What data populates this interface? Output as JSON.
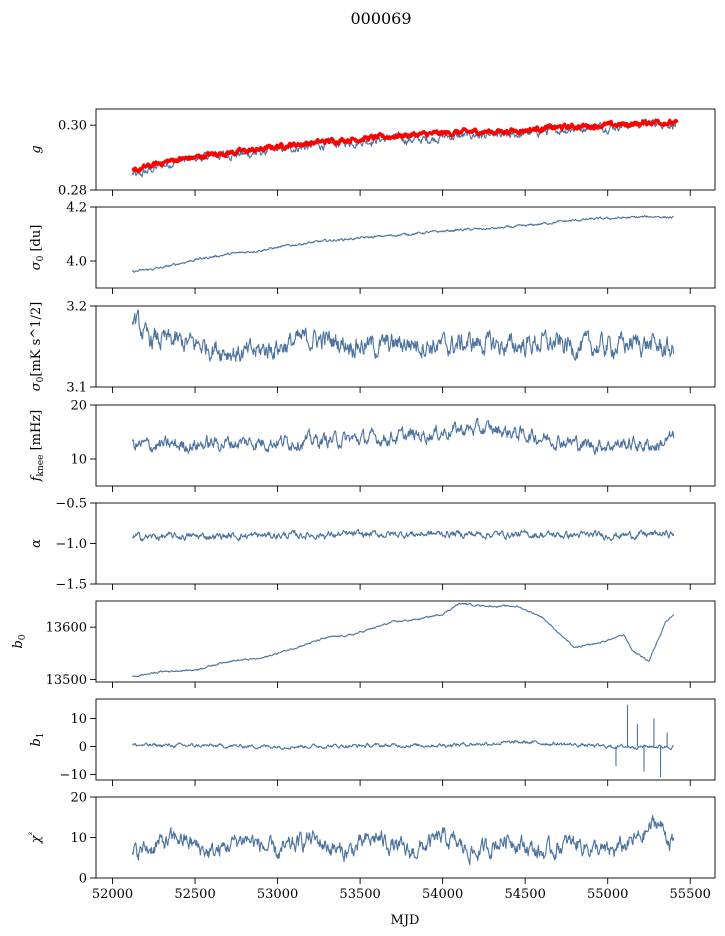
{
  "figure": {
    "title": "000069",
    "shared_xlabel": "MJD",
    "x_ticks": [
      52000,
      52500,
      53000,
      53500,
      54000,
      54500,
      55000,
      55500
    ]
  },
  "chart_data": [
    {
      "id": "g",
      "type": "line",
      "ylabel_main": "g",
      "ylabel_sub": "",
      "ylabel_tail": "",
      "xlim": [
        51900,
        55650
      ],
      "ylim": [
        0.28,
        0.305
      ],
      "yticks": [
        0.28,
        0.3
      ],
      "ytick_labels": [
        "0.28",
        "0.30"
      ],
      "x_range": [
        52120,
        55420
      ],
      "series": [
        {
          "color": "#4c72a0",
          "points": [
            [
              52120,
              0.285
            ],
            [
              52150,
              0.284
            ],
            [
              52200,
              0.2855
            ],
            [
              52300,
              0.2875
            ],
            [
              52400,
              0.289
            ],
            [
              52500,
              0.2895
            ],
            [
              52600,
              0.2905
            ],
            [
              52700,
              0.291
            ],
            [
              52800,
              0.291
            ],
            [
              52900,
              0.2915
            ],
            [
              53000,
              0.2925
            ],
            [
              53100,
              0.293
            ],
            [
              53200,
              0.2935
            ],
            [
              53300,
              0.294
            ],
            [
              53400,
              0.2945
            ],
            [
              53500,
              0.295
            ],
            [
              53600,
              0.2955
            ],
            [
              53700,
              0.296
            ],
            [
              53800,
              0.2955
            ],
            [
              53900,
              0.2955
            ],
            [
              54000,
              0.2965
            ],
            [
              54100,
              0.2965
            ],
            [
              54200,
              0.297
            ],
            [
              54300,
              0.2965
            ],
            [
              54400,
              0.2965
            ],
            [
              54500,
              0.2975
            ],
            [
              54600,
              0.298
            ],
            [
              54700,
              0.2985
            ],
            [
              54800,
              0.299
            ],
            [
              54900,
              0.2995
            ],
            [
              55000,
              0.2995
            ],
            [
              55100,
              0.3
            ],
            [
              55200,
              0.3005
            ],
            [
              55300,
              0.301
            ],
            [
              55420,
              0.3
            ]
          ],
          "noise": 0.0012
        },
        {
          "color": "#ff0000",
          "points": [
            [
              52120,
              0.2855
            ],
            [
              52200,
              0.287
            ],
            [
              52300,
              0.2885
            ],
            [
              52400,
              0.2895
            ],
            [
              52500,
              0.29
            ],
            [
              52600,
              0.291
            ],
            [
              52700,
              0.2915
            ],
            [
              52800,
              0.292
            ],
            [
              52900,
              0.2925
            ],
            [
              53000,
              0.2935
            ],
            [
              53100,
              0.294
            ],
            [
              53200,
              0.2945
            ],
            [
              53300,
              0.295
            ],
            [
              53400,
              0.2955
            ],
            [
              53500,
              0.2958
            ],
            [
              53600,
              0.2962
            ],
            [
              53700,
              0.2966
            ],
            [
              53800,
              0.297
            ],
            [
              53900,
              0.2972
            ],
            [
              54000,
              0.2975
            ],
            [
              54100,
              0.2978
            ],
            [
              54200,
              0.298
            ],
            [
              54300,
              0.298
            ],
            [
              54400,
              0.2982
            ],
            [
              54500,
              0.2985
            ],
            [
              54600,
              0.299
            ],
            [
              54700,
              0.2993
            ],
            [
              54800,
              0.2996
            ],
            [
              54900,
              0.2998
            ],
            [
              55000,
              0.3
            ],
            [
              55100,
              0.3002
            ],
            [
              55200,
              0.3005
            ],
            [
              55300,
              0.3012
            ],
            [
              55420,
              0.3005
            ]
          ],
          "noise": 0.0007
        }
      ]
    },
    {
      "id": "sigma0-du",
      "type": "line",
      "ylabel_main": "σ",
      "ylabel_sub": "0",
      "ylabel_tail": " [du]",
      "xlim": [
        51900,
        55650
      ],
      "ylim": [
        3.9,
        4.2
      ],
      "yticks": [
        4.0,
        4.2
      ],
      "ytick_labels": [
        "4.0",
        "4.2"
      ],
      "x_range": [
        52120,
        55400
      ],
      "series": [
        {
          "color": "#4c72a0",
          "points": [
            [
              52120,
              3.96
            ],
            [
              52300,
              3.975
            ],
            [
              52500,
              4.005
            ],
            [
              52700,
              4.025
            ],
            [
              52900,
              4.04
            ],
            [
              53100,
              4.06
            ],
            [
              53300,
              4.075
            ],
            [
              53500,
              4.085
            ],
            [
              53700,
              4.095
            ],
            [
              53900,
              4.105
            ],
            [
              54100,
              4.115
            ],
            [
              54300,
              4.12
            ],
            [
              54500,
              4.13
            ],
            [
              54700,
              4.145
            ],
            [
              54900,
              4.155
            ],
            [
              55100,
              4.16
            ],
            [
              55300,
              4.165
            ],
            [
              55400,
              4.16
            ]
          ],
          "noise": 0.004
        }
      ]
    },
    {
      "id": "sigma0-mk",
      "type": "line",
      "ylabel_main": "σ",
      "ylabel_sub": "0",
      "ylabel_tail": "[mK s^1/2]",
      "xlim": [
        51900,
        55650
      ],
      "ylim": [
        3.1,
        3.2
      ],
      "yticks": [
        3.1,
        3.2
      ],
      "ytick_labels": [
        "3.1",
        "3.2"
      ],
      "x_range": [
        52120,
        55400
      ],
      "series": [
        {
          "color": "#4c72a0",
          "points": [
            [
              52120,
              3.19
            ],
            [
              52200,
              3.16
            ],
            [
              52400,
              3.155
            ],
            [
              52600,
              3.15
            ],
            [
              52800,
              3.14
            ],
            [
              53000,
              3.15
            ],
            [
              53200,
              3.16
            ],
            [
              53400,
              3.155
            ],
            [
              53600,
              3.15
            ],
            [
              53800,
              3.155
            ],
            [
              54000,
              3.15
            ],
            [
              54200,
              3.155
            ],
            [
              54400,
              3.15
            ],
            [
              54600,
              3.155
            ],
            [
              54800,
              3.15
            ],
            [
              55000,
              3.15
            ],
            [
              55200,
              3.155
            ],
            [
              55400,
              3.145
            ]
          ],
          "noise": 0.012
        }
      ]
    },
    {
      "id": "fknee",
      "type": "line",
      "ylabel_main": "f",
      "ylabel_sub": "knee",
      "ylabel_tail": " [mHz]",
      "xlim": [
        51900,
        55650
      ],
      "ylim": [
        5,
        20
      ],
      "yticks": [
        10,
        20
      ],
      "ytick_labels": [
        "10",
        "20"
      ],
      "x_range": [
        52120,
        55400
      ],
      "series": [
        {
          "color": "#4c72a0",
          "points": [
            [
              52120,
              12.5
            ],
            [
              52400,
              12.5
            ],
            [
              52700,
              13
            ],
            [
              53000,
              13.2
            ],
            [
              53300,
              13.5
            ],
            [
              53600,
              13.8
            ],
            [
              53900,
              14.5
            ],
            [
              54100,
              15.5
            ],
            [
              54300,
              15.5
            ],
            [
              54500,
              14.5
            ],
            [
              54700,
              13.5
            ],
            [
              54900,
              12.5
            ],
            [
              55100,
              12.8
            ],
            [
              55300,
              12.5
            ],
            [
              55400,
              14
            ]
          ],
          "noise": 1.2
        }
      ]
    },
    {
      "id": "alpha",
      "type": "line",
      "ylabel_main": "α",
      "ylabel_sub": "",
      "ylabel_tail": "",
      "xlim": [
        51900,
        55650
      ],
      "ylim": [
        -1.5,
        -0.5
      ],
      "yticks": [
        -1.5,
        -1.0,
        -0.5
      ],
      "ytick_labels": [
        "−1.5",
        "−1.0",
        "−0.5"
      ],
      "x_range": [
        52120,
        55400
      ],
      "series": [
        {
          "color": "#4c72a0",
          "points": [
            [
              52120,
              -0.92
            ],
            [
              53000,
              -0.9
            ],
            [
              54000,
              -0.88
            ],
            [
              55000,
              -0.9
            ],
            [
              55400,
              -0.88
            ]
          ],
          "noise": 0.04
        }
      ]
    },
    {
      "id": "b0",
      "type": "line",
      "ylabel_main": "b",
      "ylabel_sub": "0",
      "ylabel_tail": "",
      "xlim": [
        51900,
        55650
      ],
      "ylim": [
        13495,
        13650
      ],
      "yticks": [
        13500,
        13600
      ],
      "ytick_labels": [
        "13500",
        "13600"
      ],
      "x_range": [
        52120,
        55400
      ],
      "series": [
        {
          "color": "#4c72a0",
          "points": [
            [
              52120,
              13505
            ],
            [
              52300,
              13515
            ],
            [
              52500,
              13518
            ],
            [
              52700,
              13535
            ],
            [
              52900,
              13540
            ],
            [
              53100,
              13560
            ],
            [
              53300,
              13580
            ],
            [
              53450,
              13585
            ],
            [
              53550,
              13595
            ],
            [
              53700,
              13610
            ],
            [
              53850,
              13615
            ],
            [
              54000,
              13625
            ],
            [
              54100,
              13645
            ],
            [
              54300,
              13640
            ],
            [
              54450,
              13640
            ],
            [
              54600,
              13620
            ],
            [
              54800,
              13560
            ],
            [
              54950,
              13570
            ],
            [
              55100,
              13585
            ],
            [
              55150,
              13555
            ],
            [
              55250,
              13535
            ],
            [
              55350,
              13610
            ],
            [
              55400,
              13625
            ]
          ],
          "noise": 1.5
        }
      ]
    },
    {
      "id": "b1",
      "type": "line",
      "ylabel_main": "b",
      "ylabel_sub": "1",
      "ylabel_tail": "",
      "xlim": [
        51900,
        55650
      ],
      "ylim": [
        -12,
        17
      ],
      "yticks": [
        -10,
        0,
        10
      ],
      "ytick_labels": [
        "−10",
        "0",
        "10"
      ],
      "x_range": [
        52120,
        55400
      ],
      "series": [
        {
          "color": "#4c72a0",
          "points": [
            [
              52120,
              0.5
            ],
            [
              53000,
              0
            ],
            [
              54000,
              0.5
            ],
            [
              54500,
              1.5
            ],
            [
              55000,
              0
            ],
            [
              55400,
              0
            ]
          ],
          "noise": 0.6
        }
      ],
      "spikes": [
        [
          55050,
          -7
        ],
        [
          55120,
          15
        ],
        [
          55180,
          8
        ],
        [
          55220,
          -9
        ],
        [
          55280,
          10
        ],
        [
          55320,
          -11
        ],
        [
          55360,
          5
        ]
      ]
    },
    {
      "id": "chi2",
      "type": "line",
      "ylabel_main": "χ",
      "ylabel_sub": "",
      "ylabel_tail": "²",
      "xlim": [
        51900,
        55650
      ],
      "ylim": [
        0,
        20
      ],
      "yticks": [
        0,
        10,
        20
      ],
      "ytick_labels": [
        "0",
        "10",
        "20"
      ],
      "x_range": [
        52120,
        55400
      ],
      "series": [
        {
          "color": "#4c72a0",
          "points": [
            [
              52120,
              6
            ],
            [
              52400,
              10
            ],
            [
              52600,
              6
            ],
            [
              52800,
              10
            ],
            [
              53000,
              6
            ],
            [
              53200,
              10
            ],
            [
              53400,
              6
            ],
            [
              53600,
              10
            ],
            [
              53800,
              6
            ],
            [
              54000,
              10
            ],
            [
              54200,
              6
            ],
            [
              54400,
              10
            ],
            [
              54600,
              6
            ],
            [
              54800,
              9
            ],
            [
              55000,
              6
            ],
            [
              55200,
              10
            ],
            [
              55300,
              14
            ],
            [
              55400,
              8
            ]
          ],
          "noise": 2.0
        }
      ]
    }
  ]
}
